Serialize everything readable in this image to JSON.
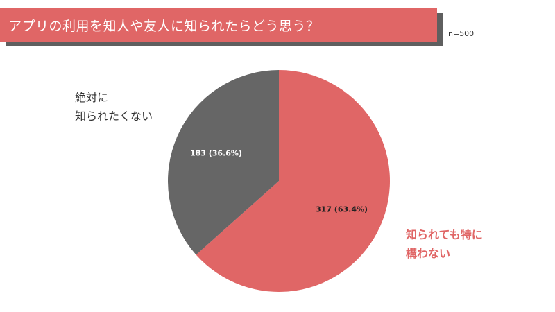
{
  "header": {
    "title": "アプリの利用を知人や友人に知られたらどう思う？",
    "sample_size": "n=500"
  },
  "labels": {
    "never_line1": "絶対に",
    "never_line2": "知られたくない",
    "fine_line1": "知られても特に",
    "fine_line2": "構わない"
  },
  "colors": {
    "accent_red": "#e06666",
    "dark_gray": "#666666",
    "shadow_gray": "#5f5f5f"
  },
  "chart_data": {
    "type": "pie",
    "title": "アプリの利用を知人や友人に知られたらどう思う？",
    "n": 500,
    "slices": [
      {
        "label": "知られても特に構わない",
        "value": 317,
        "percent": 63.4,
        "display": "317 (63.4%)",
        "color": "#e06666",
        "label_color": "#222222"
      },
      {
        "label": "絶対に知られたくない",
        "value": 183,
        "percent": 36.6,
        "display": "183 (36.6%)",
        "color": "#666666",
        "label_color": "#ffffff"
      }
    ]
  }
}
